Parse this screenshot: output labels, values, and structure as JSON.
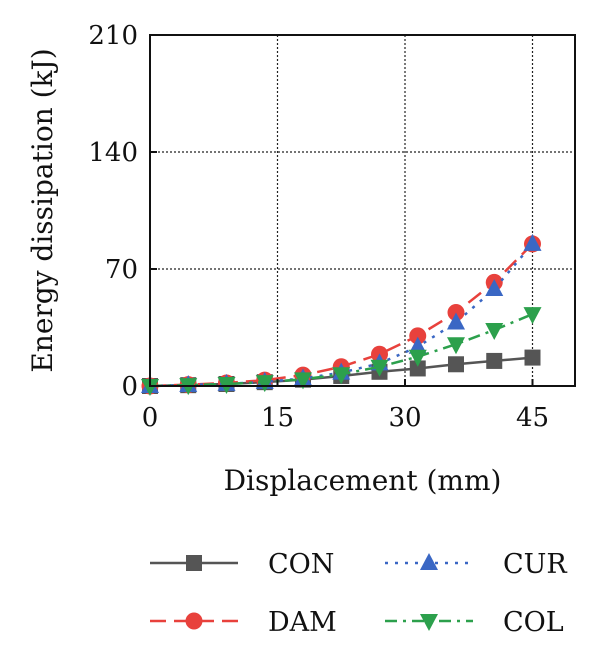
{
  "chart_data": {
    "type": "line",
    "xlabel": "Displacement (mm)",
    "ylabel": "Energy dissipation (kJ)",
    "xlim": [
      0,
      50
    ],
    "ylim": [
      0,
      210
    ],
    "x_ticks": [
      0,
      15,
      30,
      45
    ],
    "y_ticks": [
      0,
      70,
      140,
      210
    ],
    "grid": true,
    "legend_position": "bottom",
    "x": [
      0,
      4.5,
      9,
      13.5,
      18,
      22.5,
      27,
      31.5,
      36,
      40.5,
      45
    ],
    "series": [
      {
        "name": "CON",
        "color": "#555555",
        "marker": "square",
        "dash": "solid",
        "values": [
          0,
          0.5,
          1.2,
          2.3,
          3.8,
          6.0,
          8.5,
          10.5,
          13.0,
          15.0,
          17.0
        ]
      },
      {
        "name": "DAM",
        "color": "#e8413c",
        "marker": "circle",
        "dash": "dash",
        "values": [
          0,
          0.8,
          1.8,
          3.5,
          6.5,
          11.5,
          19.0,
          30.0,
          44.0,
          62.0,
          85.0
        ]
      },
      {
        "name": "CUR",
        "color": "#3a67c4",
        "marker": "triangle-up",
        "dash": "dot",
        "values": [
          0,
          0.6,
          1.3,
          2.5,
          4.5,
          8.0,
          13.5,
          23.5,
          38.0,
          58.0,
          85.0
        ]
      },
      {
        "name": "COL",
        "color": "#2ca04c",
        "marker": "triangle-down",
        "dash": "dashdot",
        "values": [
          0,
          0.5,
          1.2,
          2.3,
          4.0,
          7.0,
          11.5,
          17.5,
          25.0,
          33.5,
          43.0
        ]
      }
    ]
  }
}
